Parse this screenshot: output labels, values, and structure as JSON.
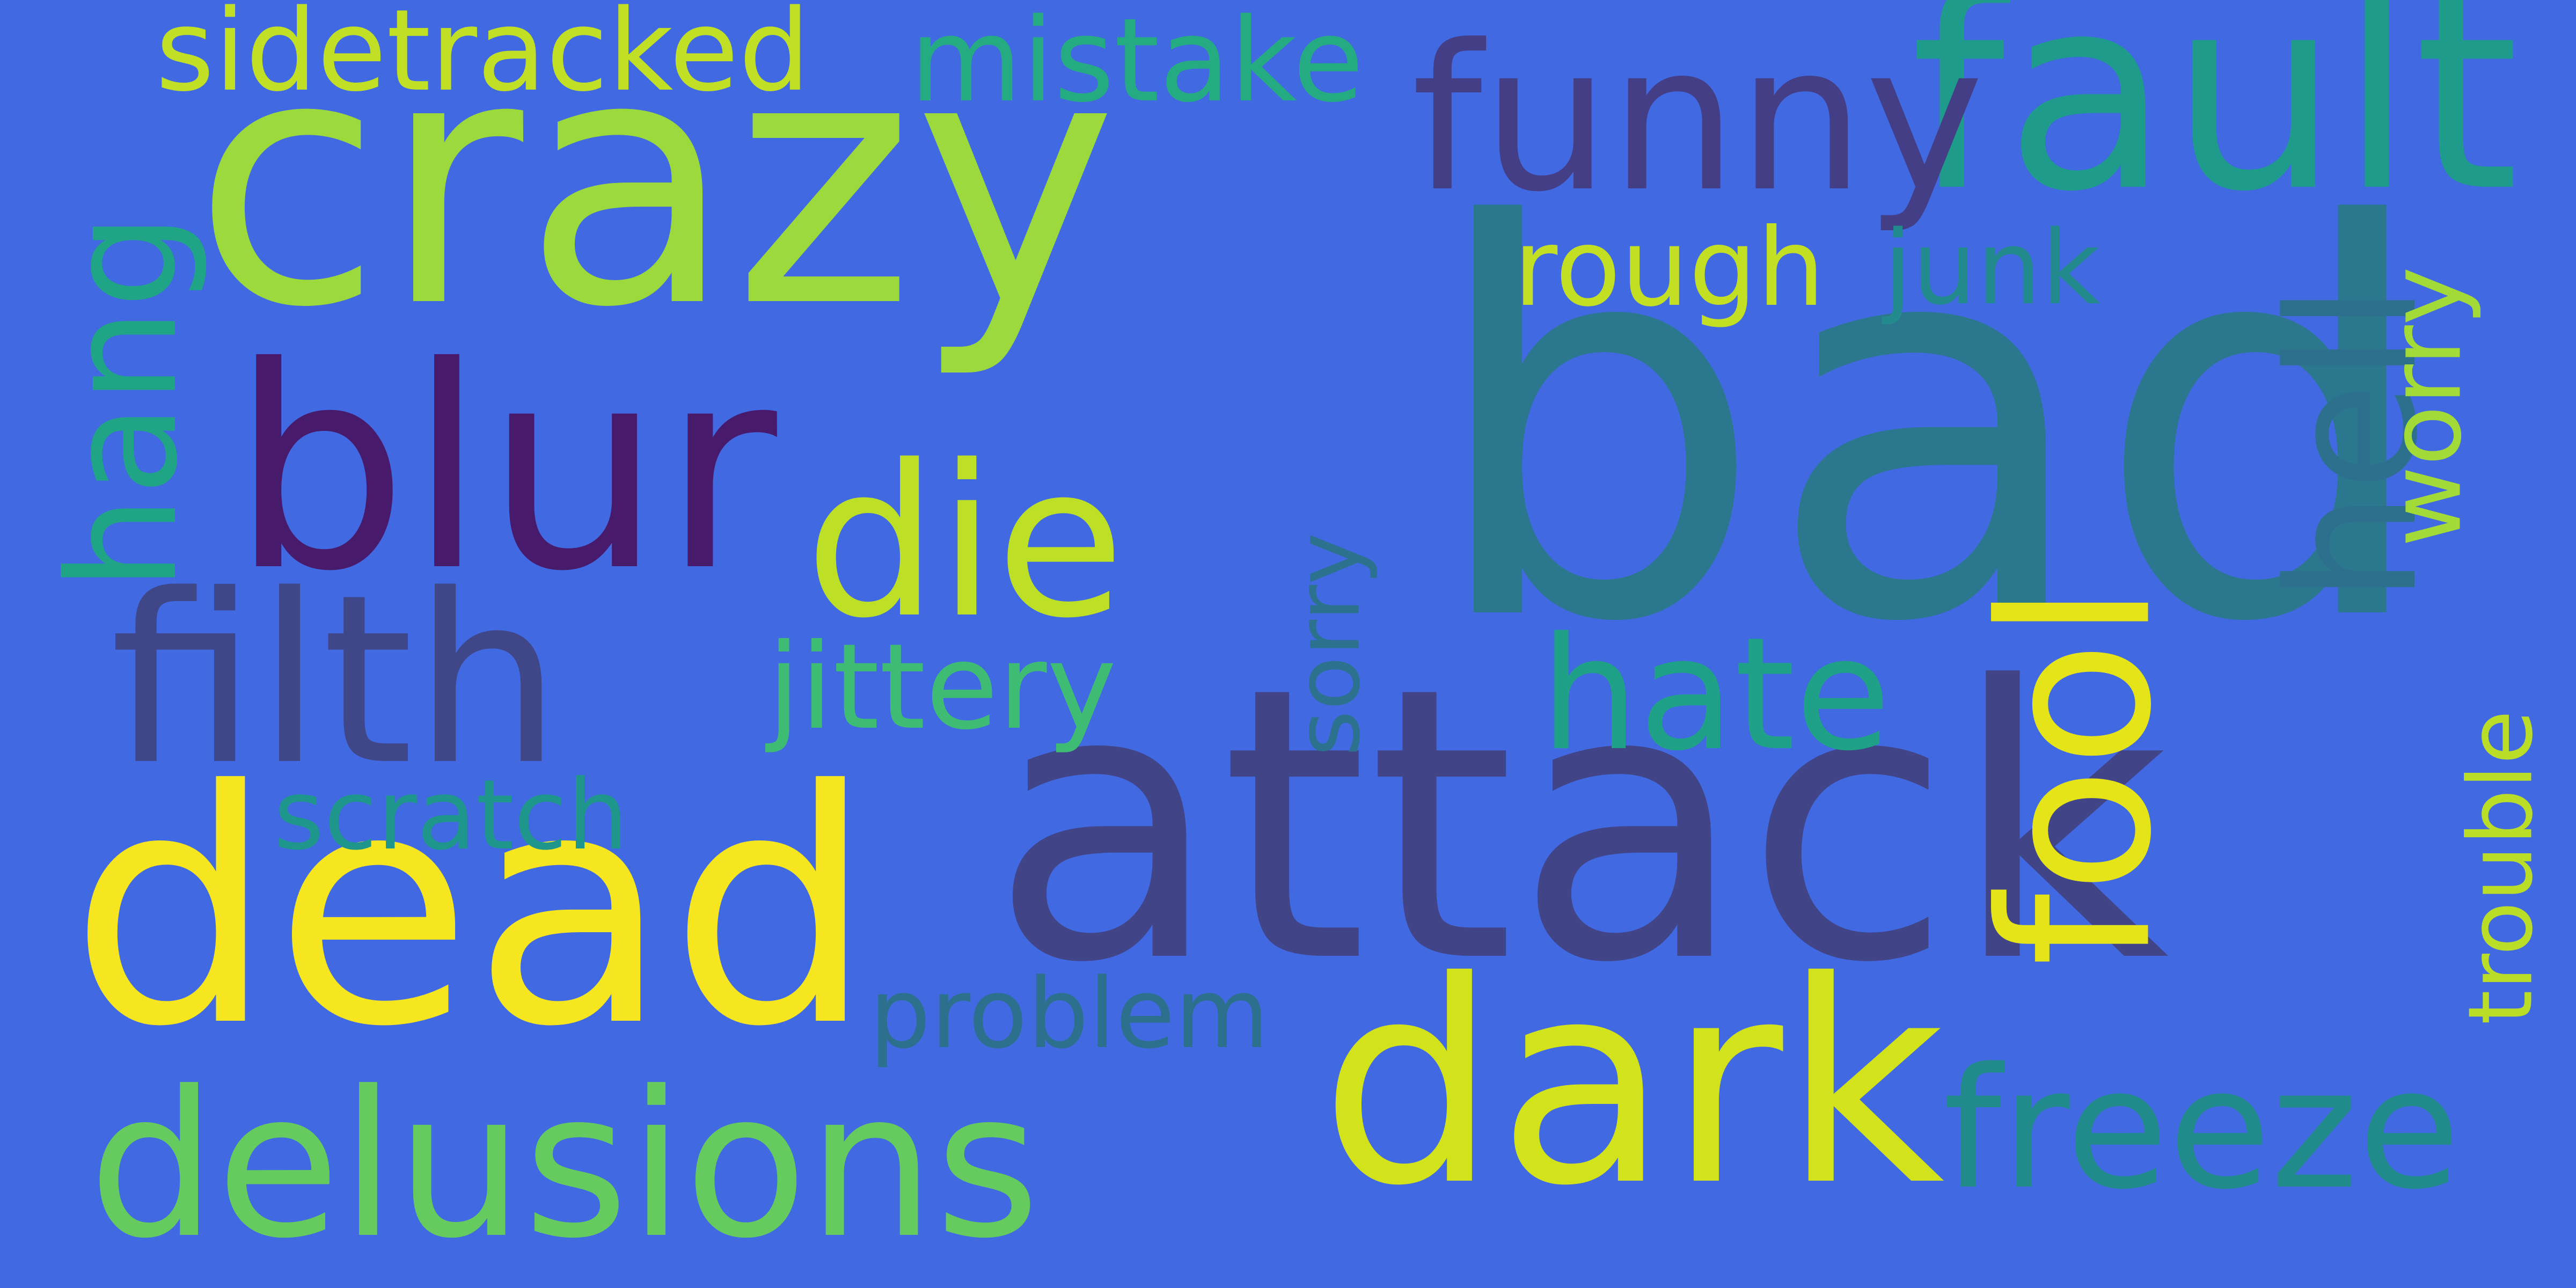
{
  "background": "#4169e1",
  "words": {
    "crazy": {
      "text": "crazy",
      "color": "#9bd93c"
    },
    "bad": {
      "text": "bad",
      "color": "#2b788e"
    },
    "attack": {
      "text": "attack",
      "color": "#414487"
    },
    "dead": {
      "text": "dead",
      "color": "#f5e61f"
    },
    "dark": {
      "text": "dark",
      "color": "#d2e21b"
    },
    "delusions": {
      "text": "delusions",
      "color": "#65cb5e"
    },
    "filth": {
      "text": "filth",
      "color": "#3f4788"
    },
    "blur": {
      "text": "blur",
      "color": "#481a6c"
    },
    "fault": {
      "text": "fault",
      "color": "#1e9b8a"
    },
    "funny": {
      "text": "funny",
      "color": "#433e85"
    },
    "die": {
      "text": "die",
      "color": "#bddf26"
    },
    "hate": {
      "text": "hate",
      "color": "#1fa187"
    },
    "freeze": {
      "text": "freeze",
      "color": "#228c8d"
    },
    "fool": {
      "text": "fool",
      "color": "#e5e419"
    },
    "hell": {
      "text": "hell",
      "color": "#2d708e"
    },
    "hang": {
      "text": "hang",
      "color": "#20a486"
    },
    "sidetracked": {
      "text": "sidetracked",
      "color": "#c0df25"
    },
    "mistake": {
      "text": "mistake",
      "color": "#25ab82"
    },
    "rough": {
      "text": "rough",
      "color": "#c2df23"
    },
    "junk": {
      "text": "junk",
      "color": "#238a8d"
    },
    "worry": {
      "text": "worry",
      "color": "#a2da37"
    },
    "sorry": {
      "text": "sorry",
      "color": "#2c728e"
    },
    "jittery": {
      "text": "jittery",
      "color": "#3fbc73"
    },
    "scratch": {
      "text": "scratch",
      "color": "#1f968b"
    },
    "problem": {
      "text": "problem",
      "color": "#2d708e"
    },
    "trouble": {
      "text": "trouble",
      "color": "#bade28"
    }
  }
}
